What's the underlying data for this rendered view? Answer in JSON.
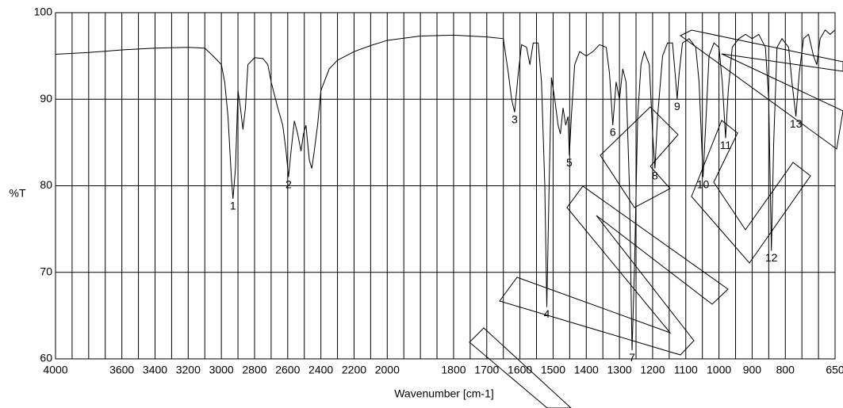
{
  "chart_data": {
    "type": "line",
    "x_label": "Wavenumber [cm-1]",
    "y_label": "%T",
    "xlim": [
      4000,
      650
    ],
    "x_break": 2000,
    "x_break_ratio": 2,
    "xticks": [
      4000,
      3600,
      3400,
      3200,
      3000,
      2800,
      2600,
      2400,
      2200,
      2000,
      1800,
      1700,
      1600,
      1500,
      1400,
      1300,
      1200,
      1100,
      1000,
      900,
      800,
      650
    ],
    "xminor": [
      3900,
      3800,
      3700,
      3500,
      3300,
      3100,
      2900,
      2700,
      2500,
      2300,
      2100,
      1950,
      1900,
      1850,
      1750,
      1650,
      1550,
      1450,
      1350,
      1250,
      1150,
      1050,
      950,
      850,
      750,
      700
    ],
    "ylim": [
      60,
      100
    ],
    "yticks": [
      60,
      70,
      80,
      90,
      100
    ],
    "grid": true,
    "color": "#000000",
    "x": [
      4000,
      3800,
      3600,
      3400,
      3200,
      3100,
      3050,
      3000,
      2980,
      2960,
      2940,
      2930,
      2915,
      2900,
      2885,
      2870,
      2855,
      2840,
      2800,
      2750,
      2720,
      2700,
      2660,
      2630,
      2610,
      2595,
      2580,
      2560,
      2540,
      2520,
      2505,
      2490,
      2470,
      2455,
      2440,
      2420,
      2400,
      2350,
      2300,
      2200,
      2100,
      2000,
      1900,
      1800,
      1700,
      1650,
      1635,
      1625,
      1616,
      1605,
      1595,
      1580,
      1570,
      1560,
      1545,
      1535,
      1525,
      1519,
      1512,
      1505,
      1495,
      1485,
      1478,
      1470,
      1462,
      1455,
      1451,
      1445,
      1435,
      1420,
      1400,
      1380,
      1360,
      1340,
      1330,
      1320,
      1310,
      1300,
      1290,
      1280,
      1270,
      1262,
      1255,
      1245,
      1235,
      1225,
      1210,
      1200,
      1193,
      1185,
      1170,
      1155,
      1140,
      1130,
      1126,
      1120,
      1110,
      1090,
      1070,
      1060,
      1048,
      1040,
      1030,
      1015,
      1000,
      990,
      980,
      972,
      960,
      940,
      920,
      900,
      880,
      860,
      850,
      842,
      835,
      825,
      810,
      790,
      780,
      768,
      758,
      745,
      730,
      715,
      705,
      695,
      680,
      665,
      650
    ],
    "values": [
      95.2,
      95.4,
      95.7,
      95.9,
      96.0,
      95.9,
      95.0,
      94.0,
      92,
      88,
      81,
      78.5,
      82,
      91,
      89,
      86.5,
      89,
      94,
      94.8,
      94.7,
      94,
      92,
      89,
      87,
      84,
      81,
      84,
      87.5,
      86,
      84,
      86,
      87,
      83,
      82,
      84,
      87,
      91,
      93.5,
      94.5,
      95.5,
      96.2,
      96.8,
      97.3,
      97.4,
      97.2,
      97,
      93,
      90,
      88.5,
      93,
      96.3,
      96,
      94,
      96.5,
      96.5,
      92,
      80,
      66,
      80,
      92.5,
      90,
      87,
      86,
      89,
      87,
      88,
      83.5,
      88,
      94,
      95.5,
      95,
      95.5,
      96.3,
      96,
      93,
      87,
      92,
      90,
      93.5,
      92,
      80,
      61,
      70,
      88,
      94,
      95.5,
      94,
      86,
      82,
      88,
      95,
      96.5,
      96.5,
      92,
      90,
      93,
      96.5,
      97,
      96,
      92,
      81,
      87,
      95,
      96.5,
      96,
      92,
      85.5,
      91,
      96,
      97,
      97.5,
      97,
      97.5,
      96,
      90,
      72.5,
      85,
      96,
      97,
      96,
      92,
      88,
      93,
      97,
      97.5,
      95,
      94,
      97,
      98,
      97.5,
      98
    ],
    "annotations": [
      {
        "text": "1",
        "x": 2930,
        "y": 78.5
      },
      {
        "text": "2",
        "x": 2595,
        "y": 81
      },
      {
        "text": "3",
        "x": 1616,
        "y": 88.5
      },
      {
        "text": "4",
        "x": 1519,
        "y": 66
      },
      {
        "text": "5",
        "x": 1451,
        "y": 83.5
      },
      {
        "text": "6",
        "x": 1320,
        "y": 87
      },
      {
        "text": "7",
        "x": 1262,
        "y": 61
      },
      {
        "text": "8",
        "x": 1193,
        "y": 82
      },
      {
        "text": "9",
        "x": 1126,
        "y": 90
      },
      {
        "text": "10",
        "x": 1048,
        "y": 81
      },
      {
        "text": "11",
        "x": 980,
        "y": 85.5
      },
      {
        "text": "12",
        "x": 842,
        "y": 72.5
      },
      {
        "text": "13",
        "x": 768,
        "y": 88
      }
    ]
  }
}
